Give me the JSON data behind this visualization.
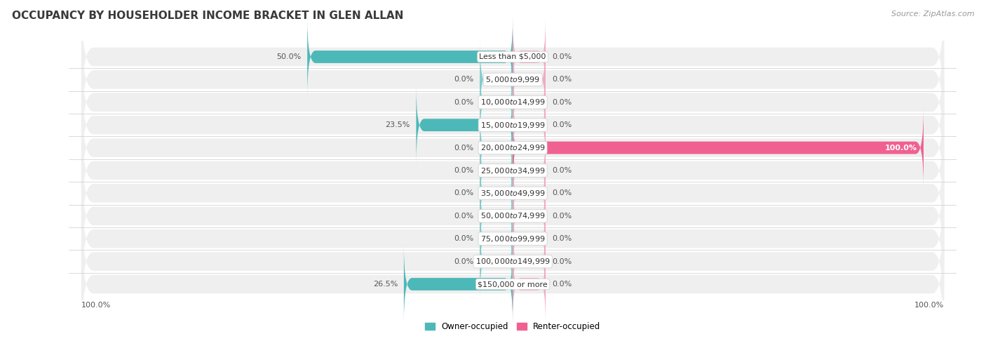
{
  "title": "OCCUPANCY BY HOUSEHOLDER INCOME BRACKET IN GLEN ALLAN",
  "source": "Source: ZipAtlas.com",
  "categories": [
    "Less than $5,000",
    "$5,000 to $9,999",
    "$10,000 to $14,999",
    "$15,000 to $19,999",
    "$20,000 to $24,999",
    "$25,000 to $34,999",
    "$35,000 to $49,999",
    "$50,000 to $74,999",
    "$75,000 to $99,999",
    "$100,000 to $149,999",
    "$150,000 or more"
  ],
  "owner_values": [
    50.0,
    0.0,
    0.0,
    23.5,
    0.0,
    0.0,
    0.0,
    0.0,
    0.0,
    0.0,
    26.5
  ],
  "renter_values": [
    0.0,
    0.0,
    0.0,
    0.0,
    100.0,
    0.0,
    0.0,
    0.0,
    0.0,
    0.0,
    0.0
  ],
  "owner_color": "#4db8b8",
  "owner_stub_color": "#80cccc",
  "renter_color": "#f06090",
  "renter_stub_color": "#f4a8c0",
  "row_bg_color": "#efefef",
  "title_fontsize": 11,
  "source_fontsize": 8,
  "label_fontsize": 8,
  "value_fontsize": 8,
  "legend_fontsize": 8.5,
  "max_value": 100,
  "stub_value": 8,
  "background_color": "#ffffff",
  "owner_label": "Owner-occupied",
  "renter_label": "Renter-occupied"
}
